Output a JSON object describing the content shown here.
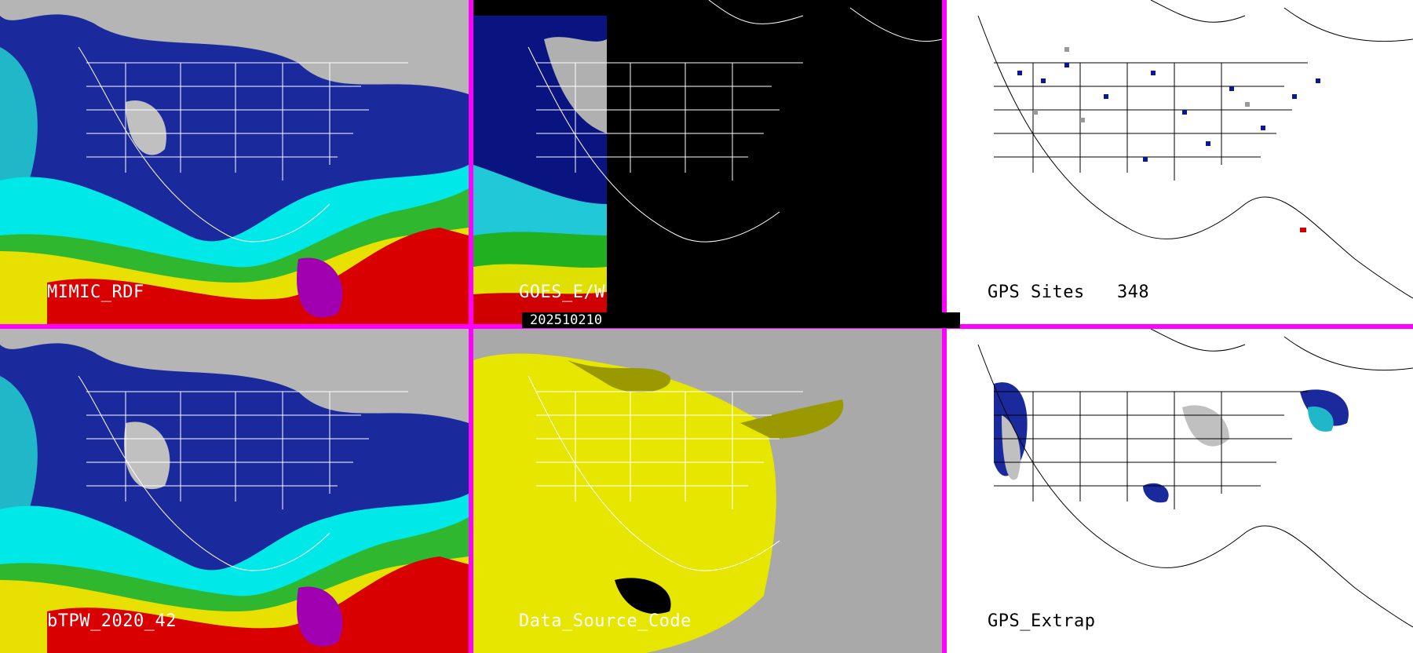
{
  "layout": "2x3 panel grid with magenta separators",
  "panels": [
    {
      "id": "mimic",
      "label": "MIMIC_RDF",
      "label_color": "#ffffff",
      "background": "#1a2a9c",
      "kind": "satellite-colorized",
      "row": 0,
      "col": 0
    },
    {
      "id": "goes",
      "label": "GOES_E/W",
      "label_color": "#ffffff",
      "background": "#000000",
      "kind": "satellite-partial",
      "row": 0,
      "col": 1
    },
    {
      "id": "gps_sites",
      "label": "GPS Sites   348",
      "label_color": "#000000",
      "background": "#ffffff",
      "kind": "station-points",
      "row": 0,
      "col": 2
    },
    {
      "id": "btpw",
      "label": "bTPW_2020_42",
      "label_color": "#ffffff",
      "background": "#1a2a9c",
      "kind": "satellite-colorized",
      "row": 1,
      "col": 0
    },
    {
      "id": "data_source",
      "label": "Data_Source_Code",
      "label_color": "#ffffff",
      "background": "#a9a9a9",
      "kind": "source-mask",
      "row": 1,
      "col": 1
    },
    {
      "id": "gps_extrap",
      "label": "GPS_Extrap",
      "label_color": "#000000",
      "background": "#ffffff",
      "kind": "extrapolated-field",
      "row": 1,
      "col": 2
    }
  ],
  "timestamp": "202510210",
  "colors": {
    "separator": "#ff00ff",
    "tpw_scale": [
      "#b0b0b0",
      "#1f2bb0",
      "#3c8cff",
      "#00f0f0",
      "#00c000",
      "#f0f000",
      "#e00000",
      "#a000a0"
    ],
    "source_mask_yellow": "#e6e600",
    "source_mask_olive": "#9a9a00",
    "gps_dot": "#0a1a8c",
    "gps_dot_grey": "#999999"
  }
}
